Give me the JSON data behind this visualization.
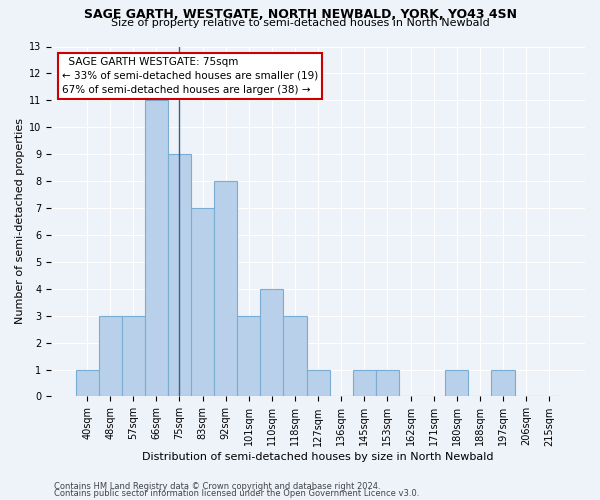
{
  "title": "SAGE GARTH, WESTGATE, NORTH NEWBALD, YORK, YO43 4SN",
  "subtitle": "Size of property relative to semi-detached houses in North Newbald",
  "xlabel": "Distribution of semi-detached houses by size in North Newbald",
  "ylabel": "Number of semi-detached properties",
  "categories": [
    "40sqm",
    "48sqm",
    "57sqm",
    "66sqm",
    "75sqm",
    "83sqm",
    "92sqm",
    "101sqm",
    "110sqm",
    "118sqm",
    "127sqm",
    "136sqm",
    "145sqm",
    "153sqm",
    "162sqm",
    "171sqm",
    "180sqm",
    "188sqm",
    "197sqm",
    "206sqm",
    "215sqm"
  ],
  "values": [
    1,
    3,
    3,
    11,
    9,
    7,
    8,
    3,
    4,
    3,
    1,
    0,
    1,
    1,
    0,
    0,
    1,
    0,
    1,
    0,
    0
  ],
  "bar_color": "#b8d0ea",
  "bar_edge_color": "#7aadd4",
  "highlight_index": 4,
  "highlight_line_color": "#3a5f8a",
  "annotation_title": "SAGE GARTH WESTGATE: 75sqm",
  "annotation_line1": "← 33% of semi-detached houses are smaller (19)",
  "annotation_line2": "67% of semi-detached houses are larger (38) →",
  "annotation_box_facecolor": "#ffffff",
  "annotation_box_edgecolor": "#cc0000",
  "ylim_max": 13,
  "yticks": [
    0,
    1,
    2,
    3,
    4,
    5,
    6,
    7,
    8,
    9,
    10,
    11,
    12,
    13
  ],
  "footer1": "Contains HM Land Registry data © Crown copyright and database right 2024.",
  "footer2": "Contains public sector information licensed under the Open Government Licence v3.0.",
  "background_color": "#eef2f9",
  "grid_color": "#ffffff",
  "title_fontsize": 9,
  "subtitle_fontsize": 8,
  "tick_fontsize": 7,
  "ylabel_fontsize": 8,
  "xlabel_fontsize": 8,
  "footer_fontsize": 6,
  "annot_fontsize": 7.5
}
